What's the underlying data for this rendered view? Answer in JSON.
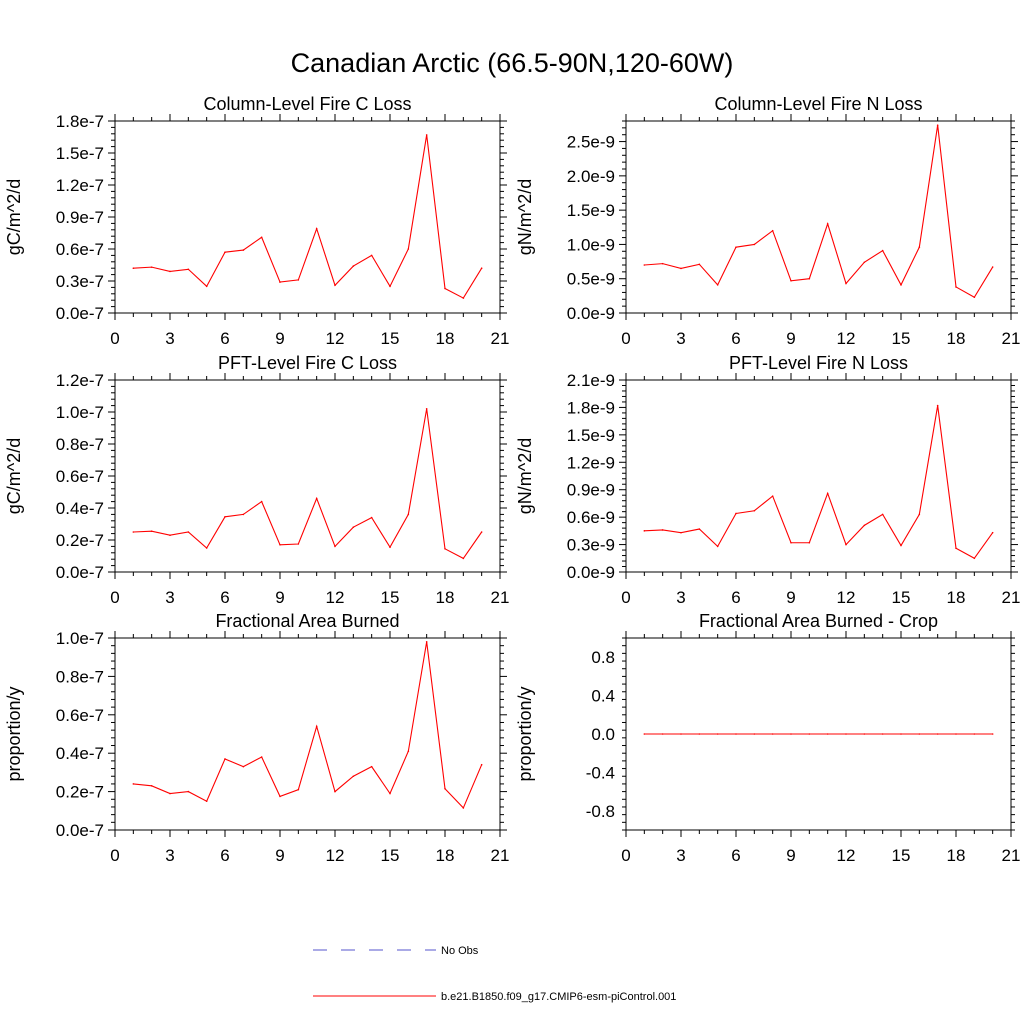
{
  "figure_title": "Canadian Arctic (66.5-90N,120-60W)",
  "legend": {
    "entries": [
      {
        "label": "No Obs",
        "color": "#5555cc",
        "dash": true
      },
      {
        "label": "b.e21.B1850.f09_g17.CMIP6-esm-piControl.001",
        "color": "#ff0000",
        "dash": false
      }
    ]
  },
  "chart_data": [
    {
      "type": "line",
      "title": "Column-Level Fire C Loss",
      "ylabel": "gC/m^2/d",
      "xlim": [
        0,
        21
      ],
      "ylim": [
        0,
        1.8e-07
      ],
      "xticks": [
        0,
        3,
        6,
        9,
        12,
        15,
        18,
        21
      ],
      "yticks": [
        0,
        3e-08,
        6e-08,
        9e-08,
        1.2e-07,
        1.5e-07,
        1.8e-07
      ],
      "yticklabels": [
        "0.0e-7",
        "0.3e-7",
        "0.6e-7",
        "0.9e-7",
        "1.2e-7",
        "1.5e-7",
        "1.8e-7"
      ],
      "series": [
        {
          "color": "#ff0000",
          "x": [
            1,
            2,
            3,
            4,
            5,
            6,
            7,
            8,
            9,
            10,
            11,
            12,
            13,
            14,
            15,
            16,
            17,
            18,
            19,
            20
          ],
          "y": [
            4.2e-08,
            4.3e-08,
            3.9e-08,
            4.1e-08,
            2.5e-08,
            5.7e-08,
            5.9e-08,
            7.1e-08,
            2.9e-08,
            3.1e-08,
            7.9e-08,
            2.6e-08,
            4.4e-08,
            5.4e-08,
            2.5e-08,
            6e-08,
            1.67e-07,
            2.3e-08,
            1.4e-08,
            4.2e-08
          ]
        }
      ]
    },
    {
      "type": "line",
      "title": "Column-Level Fire N Loss",
      "ylabel": "gN/m^2/d",
      "xlim": [
        0,
        21
      ],
      "ylim": [
        0,
        2.8e-09
      ],
      "xticks": [
        0,
        3,
        6,
        9,
        12,
        15,
        18,
        21
      ],
      "yticks": [
        0,
        5e-10,
        1e-09,
        1.5e-09,
        2e-09,
        2.5e-09
      ],
      "yticklabels": [
        "0.0e-9",
        "0.5e-9",
        "1.0e-9",
        "1.5e-9",
        "2.0e-9",
        "2.5e-9"
      ],
      "series": [
        {
          "color": "#ff0000",
          "x": [
            1,
            2,
            3,
            4,
            5,
            6,
            7,
            8,
            9,
            10,
            11,
            12,
            13,
            14,
            15,
            16,
            17,
            18,
            19,
            20
          ],
          "y": [
            7e-10,
            7.2e-10,
            6.5e-10,
            7.1e-10,
            4.1e-10,
            9.6e-10,
            1e-09,
            1.2e-09,
            4.7e-10,
            5e-10,
            1.3e-09,
            4.3e-10,
            7.4e-10,
            9.1e-10,
            4.1e-10,
            9.6e-10,
            2.74e-09,
            3.8e-10,
            2.3e-10,
            6.7e-10
          ]
        }
      ]
    },
    {
      "type": "line",
      "title": "PFT-Level Fire C Loss",
      "ylabel": "gC/m^2/d",
      "xlim": [
        0,
        21
      ],
      "ylim": [
        0,
        1.2e-07
      ],
      "xticks": [
        0,
        3,
        6,
        9,
        12,
        15,
        18,
        21
      ],
      "yticks": [
        0,
        2e-08,
        4e-08,
        6e-08,
        8e-08,
        1e-07,
        1.2e-07
      ],
      "yticklabels": [
        "0.0e-7",
        "0.2e-7",
        "0.4e-7",
        "0.6e-7",
        "0.8e-7",
        "1.0e-7",
        "1.2e-7"
      ],
      "series": [
        {
          "color": "#ff0000",
          "x": [
            1,
            2,
            3,
            4,
            5,
            6,
            7,
            8,
            9,
            10,
            11,
            12,
            13,
            14,
            15,
            16,
            17,
            18,
            19,
            20
          ],
          "y": [
            2.5e-08,
            2.55e-08,
            2.3e-08,
            2.5e-08,
            1.5e-08,
            3.45e-08,
            3.6e-08,
            4.4e-08,
            1.7e-08,
            1.75e-08,
            4.6e-08,
            1.6e-08,
            2.8e-08,
            3.4e-08,
            1.55e-08,
            3.6e-08,
            1.02e-07,
            1.45e-08,
            8.5e-09,
            2.5e-08
          ]
        }
      ]
    },
    {
      "type": "line",
      "title": "PFT-Level Fire N Loss",
      "ylabel": "gN/m^2/d",
      "xlim": [
        0,
        21
      ],
      "ylim": [
        0,
        2.1e-09
      ],
      "xticks": [
        0,
        3,
        6,
        9,
        12,
        15,
        18,
        21
      ],
      "yticks": [
        0,
        3e-10,
        6e-10,
        9e-10,
        1.2e-09,
        1.5e-09,
        1.8e-09,
        2.1e-09
      ],
      "yticklabels": [
        "0.0e-9",
        "0.3e-9",
        "0.6e-9",
        "0.9e-9",
        "1.2e-9",
        "1.5e-9",
        "1.8e-9",
        "2.1e-9"
      ],
      "series": [
        {
          "color": "#ff0000",
          "x": [
            1,
            2,
            3,
            4,
            5,
            6,
            7,
            8,
            9,
            10,
            11,
            12,
            13,
            14,
            15,
            16,
            17,
            18,
            19,
            20
          ],
          "y": [
            4.5e-10,
            4.6e-10,
            4.3e-10,
            4.7e-10,
            2.8e-10,
            6.4e-10,
            6.7e-10,
            8.3e-10,
            3.2e-10,
            3.2e-10,
            8.6e-10,
            3e-10,
            5.1e-10,
            6.3e-10,
            2.9e-10,
            6.3e-10,
            1.82e-09,
            2.6e-10,
            1.5e-10,
            4.3e-10
          ]
        }
      ]
    },
    {
      "type": "line",
      "title": "Fractional Area Burned",
      "ylabel": "proportion/y",
      "xlim": [
        0,
        21
      ],
      "ylim": [
        0,
        1e-07
      ],
      "xticks": [
        0,
        3,
        6,
        9,
        12,
        15,
        18,
        21
      ],
      "yticks": [
        0,
        2e-08,
        4e-08,
        6e-08,
        8e-08,
        1e-07
      ],
      "yticklabels": [
        "0.0e-7",
        "0.2e-7",
        "0.4e-7",
        "0.6e-7",
        "0.8e-7",
        "1.0e-7"
      ],
      "series": [
        {
          "color": "#ff0000",
          "x": [
            1,
            2,
            3,
            4,
            5,
            6,
            7,
            8,
            9,
            10,
            11,
            12,
            13,
            14,
            15,
            16,
            17,
            18,
            19,
            20
          ],
          "y": [
            2.4e-08,
            2.3e-08,
            1.9e-08,
            2e-08,
            1.5e-08,
            3.7e-08,
            3.3e-08,
            3.8e-08,
            1.75e-08,
            2.1e-08,
            5.4e-08,
            2e-08,
            2.8e-08,
            3.3e-08,
            1.9e-08,
            4.1e-08,
            9.8e-08,
            2.15e-08,
            1.15e-08,
            3.4e-08
          ]
        }
      ]
    },
    {
      "type": "line",
      "title": "Fractional Area Burned - Crop",
      "ylabel": "proportion/y",
      "xlim": [
        0,
        21
      ],
      "ylim": [
        -1.0,
        1.0
      ],
      "xticks": [
        0,
        3,
        6,
        9,
        12,
        15,
        18,
        21
      ],
      "yticks": [
        -0.8,
        -0.4,
        0,
        0.4,
        0.8
      ],
      "yticklabels": [
        "-0.8",
        "-0.4",
        "0.0",
        "0.4",
        "0.8"
      ],
      "series": [
        {
          "color": "#ff0000",
          "x": [
            1,
            2,
            3,
            4,
            5,
            6,
            7,
            8,
            9,
            10,
            11,
            12,
            13,
            14,
            15,
            16,
            17,
            18,
            19,
            20
          ],
          "y": [
            0,
            0,
            0,
            0,
            0,
            0,
            0,
            0,
            0,
            0,
            0,
            0,
            0,
            0,
            0,
            0,
            0,
            0,
            0,
            0
          ]
        }
      ]
    }
  ]
}
